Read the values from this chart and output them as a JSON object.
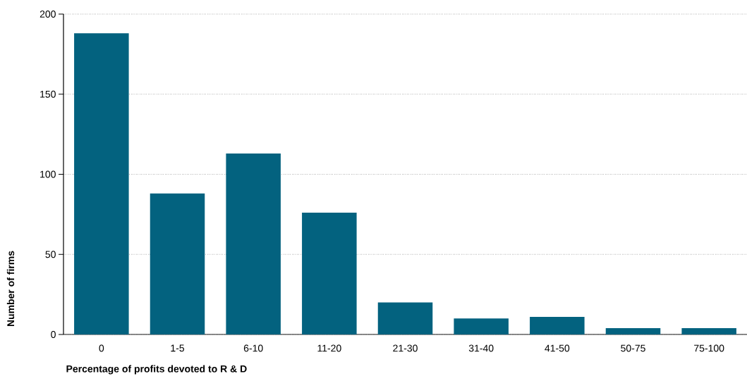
{
  "chart_data": {
    "type": "bar",
    "xlabel": "Percentage of profits devoted to R & D",
    "ylabel": "Number of firms",
    "categories": [
      "0",
      "1-5",
      "6-10",
      "11-20",
      "21-30",
      "31-40",
      "41-50",
      "50-75",
      "75-100"
    ],
    "values": [
      188,
      88,
      113,
      76,
      20,
      10,
      11,
      4,
      4
    ],
    "color": "#03627f",
    "ylim": [
      0,
      200
    ],
    "yticks": [
      0,
      50,
      100,
      150,
      200
    ],
    "grid": "y"
  }
}
